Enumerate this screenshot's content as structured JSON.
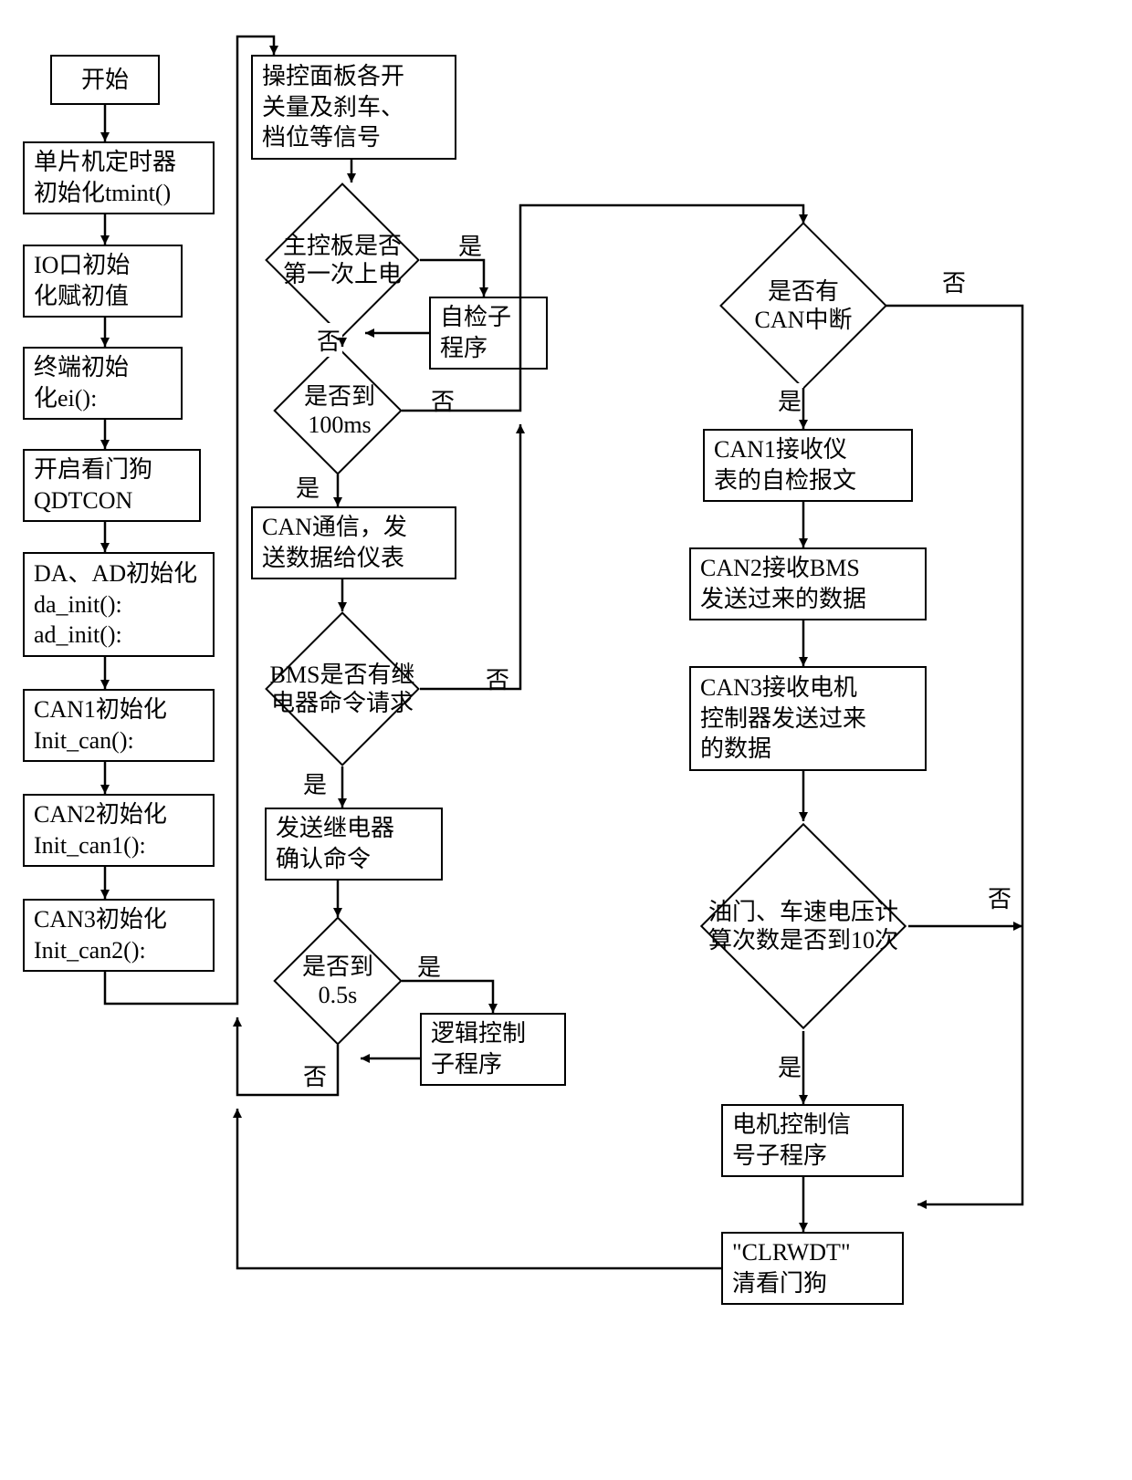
{
  "nodes": {
    "start": {
      "text": "开始"
    },
    "tmint": {
      "text": "单片机定时器\n初始化tmint()"
    },
    "ioinit": {
      "text": "IO口初始\n化赋初值"
    },
    "ei": {
      "text": "终端初始\n化ei():"
    },
    "qdtcon": {
      "text": "开启看门狗\nQDTCON"
    },
    "da_ad": {
      "text": "DA、AD初始化\nda_init():\nad_init():"
    },
    "can1": {
      "text": "CAN1初始化\nInit_can():"
    },
    "can2": {
      "text": "CAN2初始化\nInit_can1():"
    },
    "can3": {
      "text": "CAN3初始化\nInit_can2():"
    },
    "panel": {
      "text": "操控面板各开\n关量及刹车、\n档位等信号"
    },
    "firstpw": {
      "text": "主控板是否\n第一次上电"
    },
    "selfchk": {
      "text": "自检子\n程序"
    },
    "is100ms": {
      "text": "是否到\n100ms"
    },
    "cancom": {
      "text": "CAN通信，发\n送数据给仪表"
    },
    "bmsreq": {
      "text": "BMS是否有继\n电器命令请求"
    },
    "sendrel": {
      "text": "发送继电器\n确认命令"
    },
    "is05s": {
      "text": "是否到\n0.5s"
    },
    "logic": {
      "text": "逻辑控制\n子程序"
    },
    "canint": {
      "text": "是否有\nCAN中断"
    },
    "can1rx": {
      "text": "CAN1接收仪\n表的自检报文"
    },
    "can2rx": {
      "text": "CAN2接收BMS\n发送过来的数据"
    },
    "can3rx": {
      "text": "CAN3接收电机\n控制器发送过来\n的数据"
    },
    "volt10": {
      "text": "油门、车速电压计\n算次数是否到10次"
    },
    "motor": {
      "text": "电机控制信\n号子程序"
    },
    "clrwdt": {
      "text": "\"CLRWDT\"\n清看门狗"
    }
  },
  "labels": {
    "yes": "是",
    "no": "否"
  },
  "style": {
    "stroke": "#000000",
    "stroke_width": 2.5,
    "arrow_size": 12,
    "font_size": 26,
    "background": "#ffffff"
  }
}
